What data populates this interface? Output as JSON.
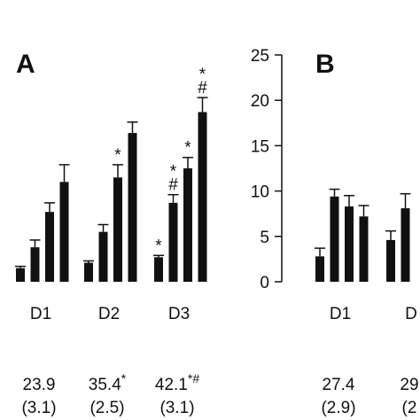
{
  "chart_data": [
    {
      "type": "bar",
      "label": "A",
      "ylim": [
        0,
        25
      ],
      "groups": [
        {
          "label": "D1",
          "values": [
            1.5,
            3.8,
            7.7,
            11.0
          ],
          "errors": [
            0.2,
            0.8,
            1.0,
            1.9
          ],
          "marks": [
            null,
            null,
            null,
            null
          ],
          "stat": {
            "mean": 23.9,
            "sd": {
              "value": 3.1,
              "label": "(3.1)"
            }
          }
        },
        {
          "label": "D2",
          "values": [
            2.1,
            5.5,
            11.5,
            16.4
          ],
          "errors": [
            0.2,
            0.8,
            1.4,
            1.2
          ],
          "marks": [
            null,
            null,
            [
              "*"
            ],
            null
          ],
          "stat": {
            "mean": 35.4,
            "sup": "*",
            "sd": {
              "value": 2.5,
              "label": "(2.5)"
            }
          }
        },
        {
          "label": "D3",
          "values": [
            2.7,
            8.7,
            12.5,
            18.7
          ],
          "errors": [
            0.2,
            0.9,
            1.2,
            1.6
          ],
          "marks": [
            [
              "*"
            ],
            [
              "*",
              "#"
            ],
            [
              "*"
            ],
            [
              "*",
              "#"
            ]
          ],
          "stat": {
            "mean": 42.1,
            "sup": "*#",
            "sd": {
              "value": 3.1,
              "label": "(3.1)"
            }
          }
        }
      ]
    },
    {
      "type": "bar",
      "label": "B",
      "ylim": [
        0,
        25
      ],
      "yticks": [
        0,
        5,
        10,
        15,
        20,
        25
      ],
      "groups": [
        {
          "label": "D1",
          "values": [
            2.8,
            9.4,
            8.3,
            7.2
          ],
          "errors": [
            0.9,
            0.8,
            1.2,
            1.2
          ],
          "marks": [
            null,
            null,
            null,
            null
          ],
          "stat": {
            "mean": 27.4,
            "sd": {
              "value": 2.9,
              "label": "(2.9)"
            }
          }
        },
        {
          "label": "D",
          "values": [
            4.6,
            8.1
          ],
          "errors": [
            1.0,
            1.6
          ],
          "marks": [
            null,
            null
          ],
          "stat": {
            "mean": 29,
            "sd": {
              "value": 2,
              "label": "(2"
            }
          }
        }
      ]
    }
  ]
}
